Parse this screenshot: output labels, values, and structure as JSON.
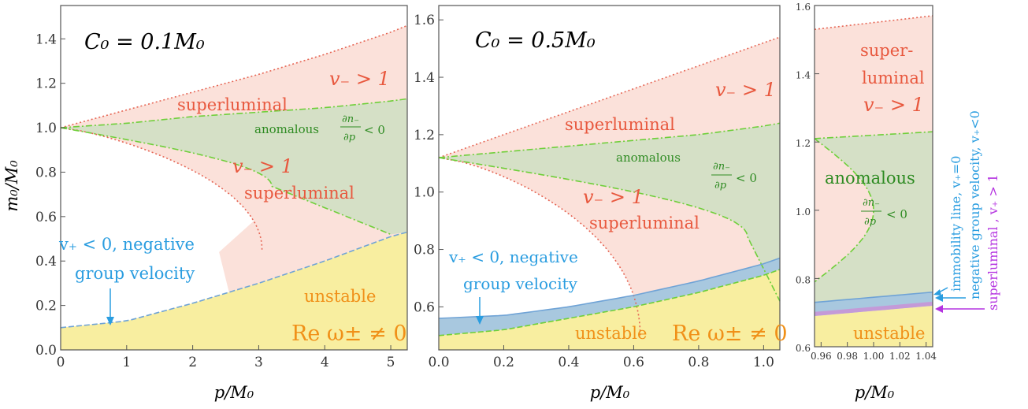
{
  "colors": {
    "superluminal_fill": "#fbe1da",
    "superluminal_edge": "#e66655",
    "anomalous_fill": "#d5e0c6",
    "anomalous_edge": "#6fcf3a",
    "anomalous_text": "#2e8b22",
    "unstable_fill": "#f8eea0",
    "unstable_text": "#f09018",
    "negvel_fill": "#a8c8df",
    "negvel_edge": "#6fa3d6",
    "negvel_text": "#2a9de0",
    "super_plus_fill": "#c49ad8",
    "super_plus_text": "#b433e0",
    "label_red": "#e8583e"
  },
  "panel_a": {
    "label": "C₀ = 0.1M₀",
    "xlabel": "p/M₀",
    "ylabel": "m₀/M₀",
    "x_ticks": [
      "0",
      "1",
      "2",
      "3",
      "4",
      "5"
    ],
    "y_ticks": [
      "0.0",
      "0.2",
      "0.4",
      "0.6",
      "0.8",
      "1.0",
      "1.2",
      "1.4"
    ],
    "text_superluminal_top": "superluminal",
    "text_vminus_top": "v₋ > 1",
    "text_anomalous": "anomalous",
    "text_dn_num": "∂n₋",
    "text_dn_den": "∂p",
    "text_dn_rel": "< 0",
    "text_vminus_mid": "v₋ > 1",
    "text_superluminal_mid": "superluminal",
    "text_neg_line1": "v₊ < 0, negative",
    "text_neg_line2": "group velocity",
    "text_unstable": "unstable",
    "text_re": "Re ω± ≠ 0"
  },
  "panel_b": {
    "label": "C₀ = 0.5M₀",
    "xlabel": "p/M₀",
    "x_ticks": [
      "0.0",
      "0.2",
      "0.4",
      "0.6",
      "0.8",
      "1.0"
    ],
    "y_ticks": [
      "0.6",
      "0.8",
      "1.0",
      "1.2",
      "1.4",
      "1.6"
    ],
    "text_vminus_top": "v₋ > 1",
    "text_superluminal_top": "superluminal",
    "text_anomalous": "anomalous",
    "text_dn_num": "∂n₋",
    "text_dn_den": "∂p",
    "text_dn_rel": "< 0",
    "text_vminus_mid": "v₋ > 1",
    "text_superluminal_mid": "superluminal",
    "text_neg_line1": "v₊ < 0, negative",
    "text_neg_line2": "group velocity",
    "text_unstable": "unstable",
    "text_re": "Re ω± ≠ 0"
  },
  "panel_c": {
    "xlabel": "p/M₀",
    "x_ticks": [
      "0.96",
      "0.98",
      "1.00",
      "1.02",
      "1.04"
    ],
    "y_ticks": [
      "0.6",
      "0.8",
      "1.0",
      "1.2",
      "1.4",
      "1.6"
    ],
    "text_super1": "super-",
    "text_super2": "luminal",
    "text_vminus": "v₋ > 1",
    "text_anomalous": "anomalous",
    "text_dn_num": "∂n₋",
    "text_dn_den": "∂p",
    "text_dn_rel": "< 0",
    "text_unstable": "unstable",
    "side_immobility": "immobility line, v₊=0",
    "side_negative": "negative group velocity, v₊<0",
    "side_superluminal": "superluminal , v₊ > 1"
  },
  "chart_data": [
    {
      "type": "area",
      "title": "C₀ = 0.1M₀",
      "xlabel": "p/M₀",
      "ylabel": "m₀/M₀",
      "xlim": [
        0,
        5.25
      ],
      "ylim": [
        0,
        1.55
      ],
      "series": [
        {
          "name": "unstable",
          "x": [
            0,
            1,
            2,
            3,
            4,
            5,
            5.25
          ],
          "values": [
            0.1,
            0.13,
            0.21,
            0.3,
            0.4,
            0.51,
            0.53
          ]
        },
        {
          "name": "superluminal",
          "x": [
            0,
            1,
            2,
            3,
            4,
            5,
            5.25
          ],
          "values": [
            1.0,
            1.08,
            1.16,
            1.24,
            1.33,
            1.43,
            1.46
          ]
        },
        {
          "name": "anomalous",
          "x": [
            0,
            1,
            2,
            3,
            4,
            5,
            5.25
          ],
          "values": [
            1.0,
            1.02,
            1.05,
            1.07,
            1.09,
            1.12,
            1.13
          ]
        }
      ]
    },
    {
      "type": "area",
      "title": "C₀ = 0.5M₀",
      "xlabel": "p/M₀",
      "xlim": [
        0,
        1.05
      ],
      "ylim": [
        0.45,
        1.65
      ],
      "series": [
        {
          "name": "unstable",
          "x": [
            0,
            0.2,
            0.4,
            0.6,
            0.8,
            1.0,
            1.05
          ],
          "values": [
            0.5,
            0.52,
            0.56,
            0.6,
            0.65,
            0.71,
            0.73
          ]
        },
        {
          "name": "negative group velocity",
          "x": [
            0,
            0.2,
            0.4,
            0.6,
            0.8,
            1.0,
            1.05
          ],
          "values": [
            0.56,
            0.57,
            0.6,
            0.64,
            0.69,
            0.75,
            0.77
          ]
        },
        {
          "name": "superluminal",
          "x": [
            0,
            0.2,
            0.4,
            0.6,
            0.8,
            1.0,
            1.05
          ],
          "values": [
            1.12,
            1.2,
            1.28,
            1.36,
            1.44,
            1.52,
            1.54
          ]
        },
        {
          "name": "anomalous",
          "x": [
            0,
            0.2,
            0.4,
            0.6,
            0.8,
            1.0,
            1.05
          ],
          "values": [
            1.12,
            1.14,
            1.16,
            1.18,
            1.2,
            1.23,
            1.24
          ]
        }
      ]
    },
    {
      "type": "area",
      "xlabel": "p/M₀",
      "xlim": [
        0.955,
        1.045
      ],
      "ylim": [
        0.6,
        1.6
      ],
      "series": [
        {
          "name": "unstable",
          "x": [
            0.955,
            1.045
          ],
          "values": [
            0.69,
            0.72
          ]
        },
        {
          "name": "negative group velocity",
          "x": [
            0.955,
            1.045
          ],
          "values": [
            0.73,
            0.76
          ]
        },
        {
          "name": "superluminal",
          "x": [
            0.955,
            1.045
          ],
          "values": [
            1.53,
            1.57
          ]
        },
        {
          "name": "anomalous",
          "x": [
            0.955,
            1.045
          ],
          "values": [
            1.21,
            1.23
          ]
        }
      ]
    }
  ]
}
